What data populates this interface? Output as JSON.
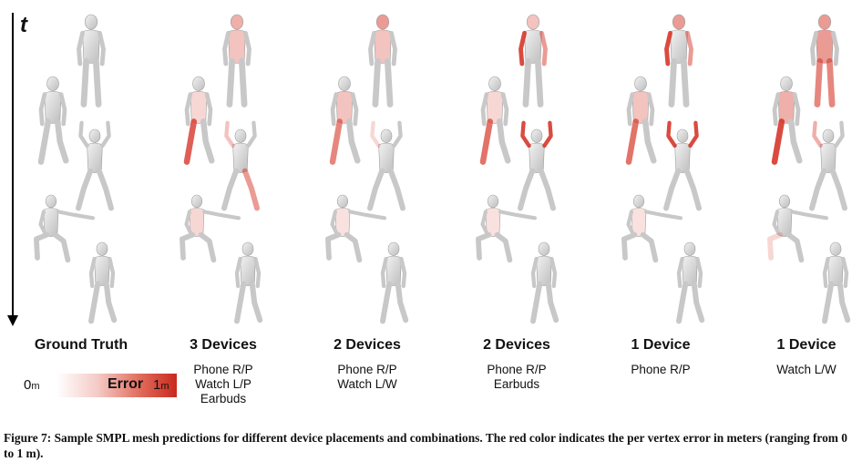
{
  "time_axis": {
    "label": "t"
  },
  "columns": [
    {
      "title": "Ground Truth",
      "devices": []
    },
    {
      "title": "3 Devices",
      "devices": [
        "Phone R/P",
        "Watch L/P",
        "Earbuds"
      ]
    },
    {
      "title": "2 Devices",
      "devices": [
        "Phone R/P",
        "Watch L/W"
      ]
    },
    {
      "title": "2 Devices",
      "devices": [
        "Phone R/P",
        "Earbuds"
      ]
    },
    {
      "title": "1 Device",
      "devices": [
        "Phone R/P"
      ]
    },
    {
      "title": "1 Device",
      "devices": [
        "Watch L/W"
      ]
    }
  ],
  "legend": {
    "min": "0",
    "max": "1",
    "unit": "m",
    "label": "Error",
    "colors": {
      "low": "#ffffff",
      "high": "#c9291d"
    }
  },
  "caption": {
    "label": "Figure 7:",
    "text": "Sample SMPL mesh predictions for different device placements and combinations. The red color indicates the per vertex error in meters (ranging from 0 to 1 m)."
  },
  "colors": {
    "mesh": "#d9d9d9",
    "mesh_edge": "#a8a8a8",
    "error": "#d6372a"
  }
}
